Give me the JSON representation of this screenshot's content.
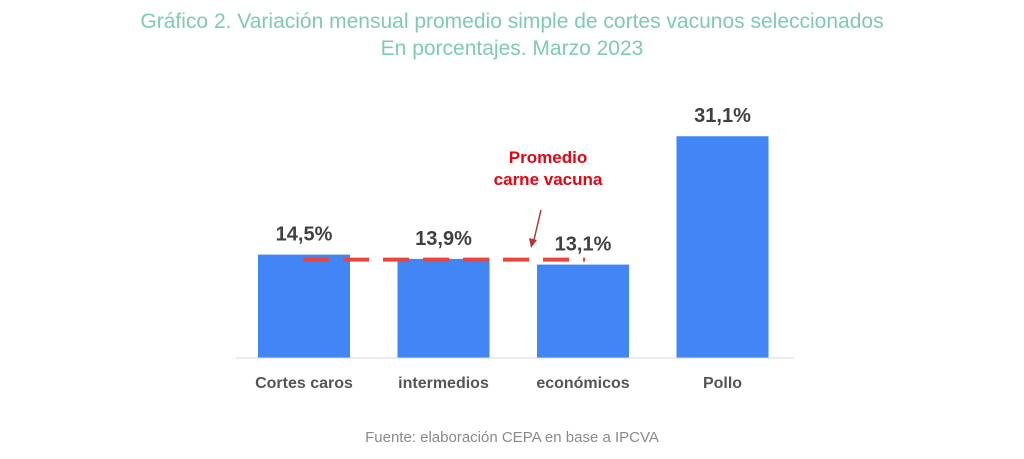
{
  "chart_data": {
    "type": "bar",
    "title_line1": "Gráfico 2. Variación mensual promedio simple de cortes vacunos seleccionados",
    "title_line2": "En porcentajes. Marzo 2023",
    "categories": [
      "Cortes caros",
      "intermedios",
      "económicos",
      "Pollo"
    ],
    "values": [
      14.5,
      13.9,
      13.1,
      31.1
    ],
    "value_labels": [
      "14,5%",
      "13,9%",
      "13,1%",
      "31,1%"
    ],
    "ylim": [
      0,
      34.5
    ],
    "reference_line": {
      "value": 13.8,
      "style": "dashed",
      "color": "#e8453c"
    },
    "annotation": {
      "line1": "Promedio",
      "line2": "carne vacuna",
      "color": "#e30613"
    },
    "bar_color": "#4285f4",
    "grid": false,
    "source": "Fuente: elaboración CEPA en base a IPCVA"
  }
}
